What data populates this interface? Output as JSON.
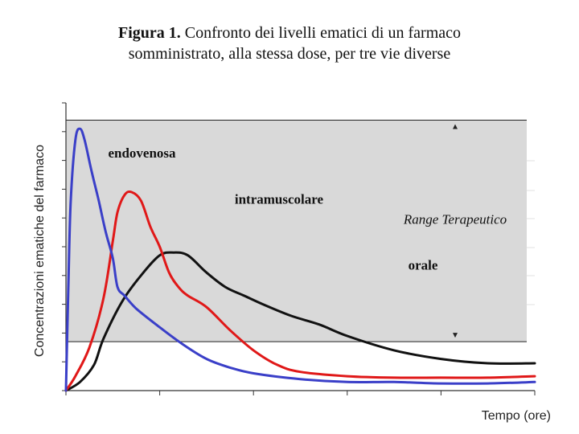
{
  "title": {
    "bold": "Figura 1.",
    "line1": "Confronto dei livelli ematici di un farmaco",
    "line2": "somministrato, alla stessa dose, per tre vie diverse"
  },
  "chart_data": {
    "type": "line",
    "xlabel": "Tempo (ore)",
    "ylabel": "Concentrazioni ematiche del farmaco",
    "xlim": [
      0,
      10
    ],
    "ylim": [
      0,
      10
    ],
    "range_label": "Range Terapeutico",
    "therapeutic_range": [
      1.7,
      9.4
    ],
    "colors": {
      "endovenosa": "#3a3fc8",
      "intramuscolare": "#e01818",
      "orale": "#111111",
      "range_fill": "#d9d9d9"
    },
    "series": [
      {
        "name": "endovenosa",
        "x": [
          0.0,
          0.05,
          0.1,
          0.2,
          0.3,
          0.4,
          0.55,
          0.7,
          0.85,
          1.0,
          1.1,
          1.25,
          1.5,
          2.0,
          2.5,
          3.0,
          3.5,
          4.0,
          5.0,
          6.0,
          7.0,
          8.0,
          9.0,
          10.0
        ],
        "y": [
          0.0,
          3.5,
          6.5,
          8.7,
          9.1,
          8.7,
          7.6,
          6.6,
          5.5,
          4.6,
          3.6,
          3.3,
          2.85,
          2.2,
          1.6,
          1.1,
          0.8,
          0.6,
          0.4,
          0.3,
          0.3,
          0.25,
          0.25,
          0.3
        ]
      },
      {
        "name": "intramuscolare",
        "x": [
          0.0,
          0.2,
          0.5,
          0.8,
          1.0,
          1.1,
          1.25,
          1.4,
          1.6,
          1.8,
          2.0,
          2.2,
          2.4,
          2.6,
          3.0,
          3.5,
          4.0,
          4.5,
          5.0,
          6.0,
          7.0,
          8.0,
          9.0,
          10.0
        ],
        "y": [
          0.0,
          0.5,
          1.5,
          3.2,
          5.2,
          6.2,
          6.8,
          6.9,
          6.6,
          5.7,
          5.0,
          4.1,
          3.6,
          3.3,
          2.9,
          2.1,
          1.4,
          0.9,
          0.65,
          0.5,
          0.45,
          0.45,
          0.45,
          0.5
        ]
      },
      {
        "name": "orale",
        "x": [
          0.0,
          0.3,
          0.6,
          0.8,
          1.2,
          1.6,
          2.0,
          2.3,
          2.6,
          3.0,
          3.4,
          3.8,
          4.2,
          4.8,
          5.4,
          6.0,
          7.0,
          8.0,
          9.0,
          10.0
        ],
        "y": [
          0.0,
          0.3,
          0.9,
          1.8,
          3.1,
          4.0,
          4.7,
          4.8,
          4.7,
          4.1,
          3.6,
          3.3,
          3.0,
          2.6,
          2.3,
          1.9,
          1.4,
          1.1,
          0.95,
          0.95
        ]
      }
    ],
    "grid": false
  }
}
